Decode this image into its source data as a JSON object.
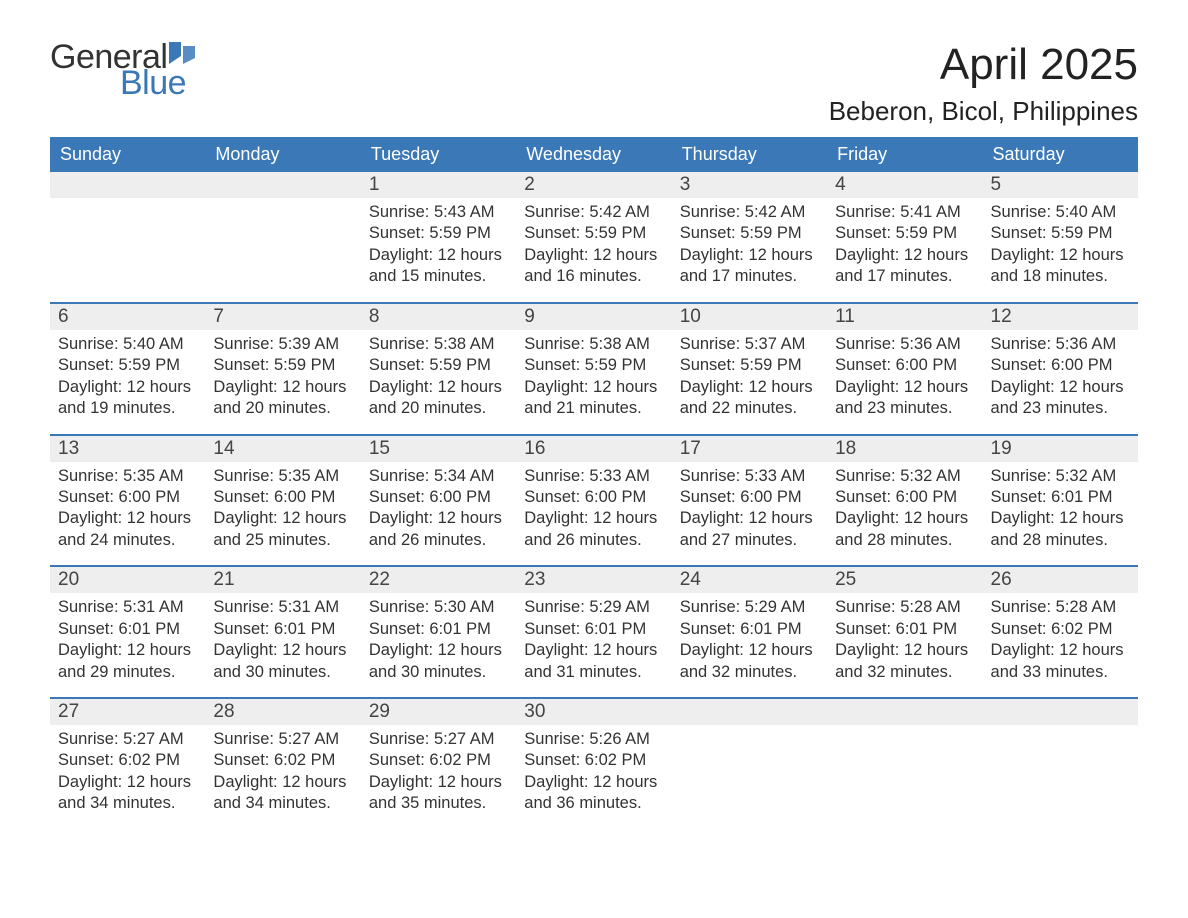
{
  "logo": {
    "word1": "General",
    "word2": "Blue",
    "accent_color": "#3b78b8"
  },
  "title": "April 2025",
  "location": "Beberon, Bicol, Philippines",
  "colors": {
    "header_bg": "#3b78b8",
    "header_text": "#ffffff",
    "row_sep": "#3b78b8",
    "daynum_bg": "#eeeeee",
    "body_text": "#333333",
    "page_bg": "#ffffff"
  },
  "typography": {
    "title_fontsize": 44,
    "location_fontsize": 26,
    "dow_fontsize": 18,
    "daynum_fontsize": 19,
    "body_fontsize": 16.5
  },
  "days_of_week": [
    "Sunday",
    "Monday",
    "Tuesday",
    "Wednesday",
    "Thursday",
    "Friday",
    "Saturday"
  ],
  "labels": {
    "sunrise": "Sunrise:",
    "sunset": "Sunset:",
    "daylight": "Daylight:"
  },
  "weeks": [
    [
      null,
      null,
      {
        "n": "1",
        "sunrise": "5:43 AM",
        "sunset": "5:59 PM",
        "daylight": "12 hours and 15 minutes."
      },
      {
        "n": "2",
        "sunrise": "5:42 AM",
        "sunset": "5:59 PM",
        "daylight": "12 hours and 16 minutes."
      },
      {
        "n": "3",
        "sunrise": "5:42 AM",
        "sunset": "5:59 PM",
        "daylight": "12 hours and 17 minutes."
      },
      {
        "n": "4",
        "sunrise": "5:41 AM",
        "sunset": "5:59 PM",
        "daylight": "12 hours and 17 minutes."
      },
      {
        "n": "5",
        "sunrise": "5:40 AM",
        "sunset": "5:59 PM",
        "daylight": "12 hours and 18 minutes."
      }
    ],
    [
      {
        "n": "6",
        "sunrise": "5:40 AM",
        "sunset": "5:59 PM",
        "daylight": "12 hours and 19 minutes."
      },
      {
        "n": "7",
        "sunrise": "5:39 AM",
        "sunset": "5:59 PM",
        "daylight": "12 hours and 20 minutes."
      },
      {
        "n": "8",
        "sunrise": "5:38 AM",
        "sunset": "5:59 PM",
        "daylight": "12 hours and 20 minutes."
      },
      {
        "n": "9",
        "sunrise": "5:38 AM",
        "sunset": "5:59 PM",
        "daylight": "12 hours and 21 minutes."
      },
      {
        "n": "10",
        "sunrise": "5:37 AM",
        "sunset": "5:59 PM",
        "daylight": "12 hours and 22 minutes."
      },
      {
        "n": "11",
        "sunrise": "5:36 AM",
        "sunset": "6:00 PM",
        "daylight": "12 hours and 23 minutes."
      },
      {
        "n": "12",
        "sunrise": "5:36 AM",
        "sunset": "6:00 PM",
        "daylight": "12 hours and 23 minutes."
      }
    ],
    [
      {
        "n": "13",
        "sunrise": "5:35 AM",
        "sunset": "6:00 PM",
        "daylight": "12 hours and 24 minutes."
      },
      {
        "n": "14",
        "sunrise": "5:35 AM",
        "sunset": "6:00 PM",
        "daylight": "12 hours and 25 minutes."
      },
      {
        "n": "15",
        "sunrise": "5:34 AM",
        "sunset": "6:00 PM",
        "daylight": "12 hours and 26 minutes."
      },
      {
        "n": "16",
        "sunrise": "5:33 AM",
        "sunset": "6:00 PM",
        "daylight": "12 hours and 26 minutes."
      },
      {
        "n": "17",
        "sunrise": "5:33 AM",
        "sunset": "6:00 PM",
        "daylight": "12 hours and 27 minutes."
      },
      {
        "n": "18",
        "sunrise": "5:32 AM",
        "sunset": "6:00 PM",
        "daylight": "12 hours and 28 minutes."
      },
      {
        "n": "19",
        "sunrise": "5:32 AM",
        "sunset": "6:01 PM",
        "daylight": "12 hours and 28 minutes."
      }
    ],
    [
      {
        "n": "20",
        "sunrise": "5:31 AM",
        "sunset": "6:01 PM",
        "daylight": "12 hours and 29 minutes."
      },
      {
        "n": "21",
        "sunrise": "5:31 AM",
        "sunset": "6:01 PM",
        "daylight": "12 hours and 30 minutes."
      },
      {
        "n": "22",
        "sunrise": "5:30 AM",
        "sunset": "6:01 PM",
        "daylight": "12 hours and 30 minutes."
      },
      {
        "n": "23",
        "sunrise": "5:29 AM",
        "sunset": "6:01 PM",
        "daylight": "12 hours and 31 minutes."
      },
      {
        "n": "24",
        "sunrise": "5:29 AM",
        "sunset": "6:01 PM",
        "daylight": "12 hours and 32 minutes."
      },
      {
        "n": "25",
        "sunrise": "5:28 AM",
        "sunset": "6:01 PM",
        "daylight": "12 hours and 32 minutes."
      },
      {
        "n": "26",
        "sunrise": "5:28 AM",
        "sunset": "6:02 PM",
        "daylight": "12 hours and 33 minutes."
      }
    ],
    [
      {
        "n": "27",
        "sunrise": "5:27 AM",
        "sunset": "6:02 PM",
        "daylight": "12 hours and 34 minutes."
      },
      {
        "n": "28",
        "sunrise": "5:27 AM",
        "sunset": "6:02 PM",
        "daylight": "12 hours and 34 minutes."
      },
      {
        "n": "29",
        "sunrise": "5:27 AM",
        "sunset": "6:02 PM",
        "daylight": "12 hours and 35 minutes."
      },
      {
        "n": "30",
        "sunrise": "5:26 AM",
        "sunset": "6:02 PM",
        "daylight": "12 hours and 36 minutes."
      },
      null,
      null,
      null
    ]
  ]
}
